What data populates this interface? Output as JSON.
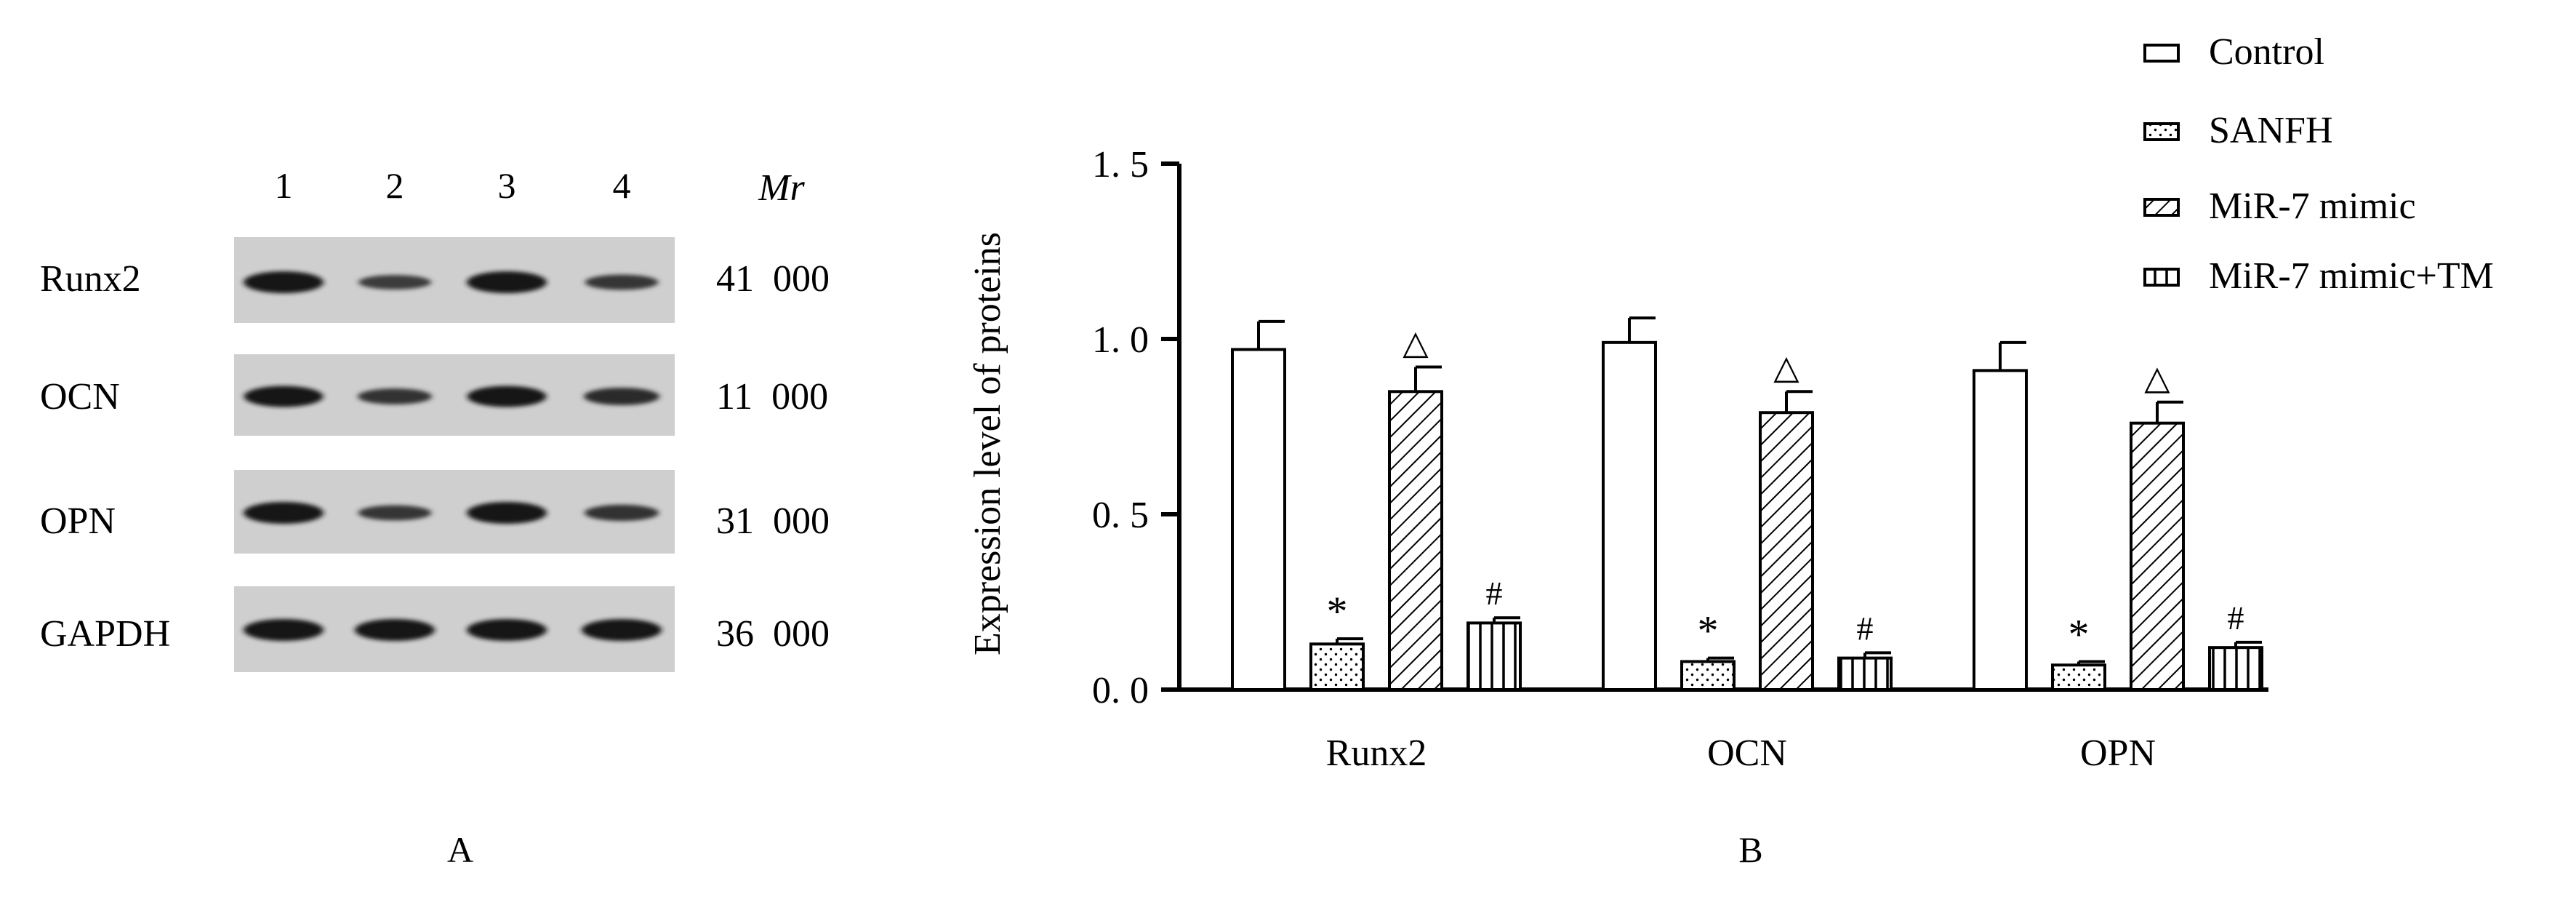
{
  "panel_a": {
    "panel_label": "A",
    "lanes": [
      "1",
      "2",
      "3",
      "4"
    ],
    "mr_header": "Mr",
    "blots": [
      {
        "protein": "Runx2",
        "mr": "41  000",
        "band_intensity": [
          1.0,
          0.5,
          1.0,
          0.55
        ]
      },
      {
        "protein": "OCN",
        "mr": "11  000",
        "band_intensity": [
          0.95,
          0.6,
          0.95,
          0.7
        ]
      },
      {
        "protein": "OPN",
        "mr": "31  000",
        "band_intensity": [
          1.0,
          0.55,
          1.0,
          0.62
        ]
      },
      {
        "protein": "GAPDH",
        "mr": "36  000",
        "band_intensity": [
          1.0,
          1.0,
          1.0,
          1.0
        ]
      }
    ]
  },
  "chart_data": {
    "type": "bar",
    "panel_label": "B",
    "title": "",
    "xlabel": "",
    "ylabel": "Expression level of proteins",
    "ylim": [
      0,
      1.5
    ],
    "yticks": [
      "0. 0",
      "0. 5",
      "1. 0",
      "1. 5"
    ],
    "ytick_values": [
      0,
      0.5,
      1.0,
      1.5
    ],
    "categories": [
      "Runx2",
      "OCN",
      "OPN"
    ],
    "legend_position": "top-right",
    "series": [
      {
        "name": "Control",
        "pattern": "none",
        "values": [
          0.97,
          0.99,
          0.91
        ],
        "errors": [
          0.08,
          0.07,
          0.08
        ],
        "marks": [
          "",
          "",
          ""
        ]
      },
      {
        "name": "SANFH",
        "pattern": "dots",
        "values": [
          0.13,
          0.08,
          0.07
        ],
        "errors": [
          0.015,
          0.01,
          0.01
        ],
        "marks": [
          "*",
          "*",
          "*"
        ]
      },
      {
        "name": "MiR-7 mimic",
        "pattern": "diagonal",
        "values": [
          0.85,
          0.79,
          0.76
        ],
        "errors": [
          0.07,
          0.06,
          0.06
        ],
        "marks": [
          "△",
          "△",
          "△"
        ]
      },
      {
        "name": "MiR-7 mimic+TM",
        "pattern": "vertical",
        "values": [
          0.19,
          0.09,
          0.12
        ],
        "errors": [
          0.015,
          0.015,
          0.015
        ],
        "marks": [
          "#",
          "#",
          "#"
        ]
      }
    ],
    "grid": false,
    "colors": {
      "bar_stroke": "#000000",
      "bar_fill": "#ffffff"
    }
  }
}
